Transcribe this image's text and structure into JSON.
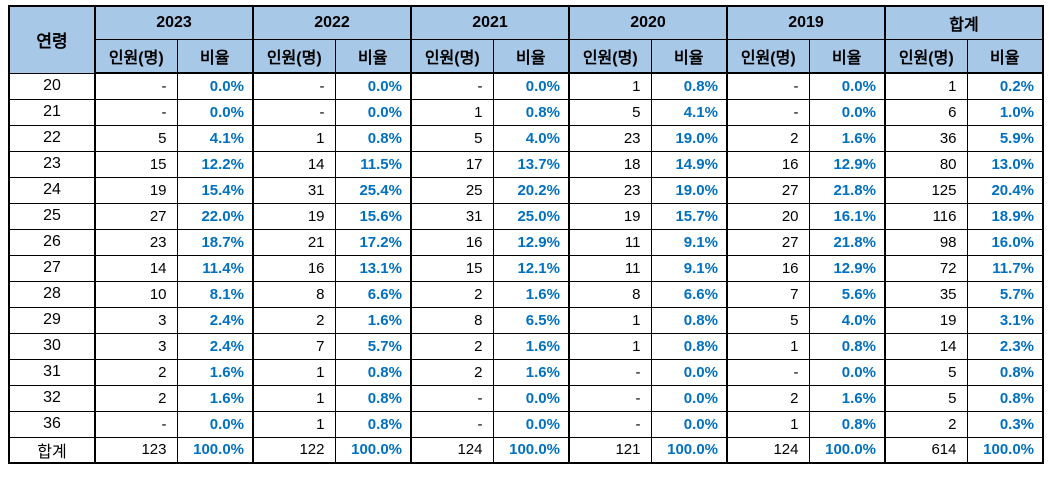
{
  "colors": {
    "header_bg": "#A8C8E8",
    "ratio_text": "#0070C0",
    "border": "#000000",
    "count_text": "#000000"
  },
  "chart_data": {
    "type": "table",
    "row_header": "연령",
    "groups": [
      "2023",
      "2022",
      "2021",
      "2020",
      "2019",
      "합계"
    ],
    "subcolumns": [
      "인원(명)",
      "비율"
    ],
    "rows": [
      {
        "age": "20",
        "values": [
          "-",
          "0.0%",
          "-",
          "0.0%",
          "-",
          "0.0%",
          "1",
          "0.8%",
          "-",
          "0.0%",
          "1",
          "0.2%"
        ]
      },
      {
        "age": "21",
        "values": [
          "-",
          "0.0%",
          "-",
          "0.0%",
          "1",
          "0.8%",
          "5",
          "4.1%",
          "-",
          "0.0%",
          "6",
          "1.0%"
        ]
      },
      {
        "age": "22",
        "values": [
          "5",
          "4.1%",
          "1",
          "0.8%",
          "5",
          "4.0%",
          "23",
          "19.0%",
          "2",
          "1.6%",
          "36",
          "5.9%"
        ]
      },
      {
        "age": "23",
        "values": [
          "15",
          "12.2%",
          "14",
          "11.5%",
          "17",
          "13.7%",
          "18",
          "14.9%",
          "16",
          "12.9%",
          "80",
          "13.0%"
        ]
      },
      {
        "age": "24",
        "values": [
          "19",
          "15.4%",
          "31",
          "25.4%",
          "25",
          "20.2%",
          "23",
          "19.0%",
          "27",
          "21.8%",
          "125",
          "20.4%"
        ]
      },
      {
        "age": "25",
        "values": [
          "27",
          "22.0%",
          "19",
          "15.6%",
          "31",
          "25.0%",
          "19",
          "15.7%",
          "20",
          "16.1%",
          "116",
          "18.9%"
        ]
      },
      {
        "age": "26",
        "values": [
          "23",
          "18.7%",
          "21",
          "17.2%",
          "16",
          "12.9%",
          "11",
          "9.1%",
          "27",
          "21.8%",
          "98",
          "16.0%"
        ]
      },
      {
        "age": "27",
        "values": [
          "14",
          "11.4%",
          "16",
          "13.1%",
          "15",
          "12.1%",
          "11",
          "9.1%",
          "16",
          "12.9%",
          "72",
          "11.7%"
        ]
      },
      {
        "age": "28",
        "values": [
          "10",
          "8.1%",
          "8",
          "6.6%",
          "2",
          "1.6%",
          "8",
          "6.6%",
          "7",
          "5.6%",
          "35",
          "5.7%"
        ]
      },
      {
        "age": "29",
        "values": [
          "3",
          "2.4%",
          "2",
          "1.6%",
          "8",
          "6.5%",
          "1",
          "0.8%",
          "5",
          "4.0%",
          "19",
          "3.1%"
        ]
      },
      {
        "age": "30",
        "values": [
          "3",
          "2.4%",
          "7",
          "5.7%",
          "2",
          "1.6%",
          "1",
          "0.8%",
          "1",
          "0.8%",
          "14",
          "2.3%"
        ]
      },
      {
        "age": "31",
        "values": [
          "2",
          "1.6%",
          "1",
          "0.8%",
          "2",
          "1.6%",
          "-",
          "0.0%",
          "-",
          "0.0%",
          "5",
          "0.8%"
        ]
      },
      {
        "age": "32",
        "values": [
          "2",
          "1.6%",
          "1",
          "0.8%",
          "-",
          "0.0%",
          "-",
          "0.0%",
          "2",
          "1.6%",
          "5",
          "0.8%"
        ]
      },
      {
        "age": "36",
        "values": [
          "-",
          "0.0%",
          "1",
          "0.8%",
          "-",
          "0.0%",
          "-",
          "0.0%",
          "1",
          "0.8%",
          "2",
          "0.3%"
        ]
      },
      {
        "age": "합계",
        "values": [
          "123",
          "100.0%",
          "122",
          "100.0%",
          "124",
          "100.0%",
          "121",
          "100.0%",
          "124",
          "100.0%",
          "614",
          "100.0%"
        ]
      }
    ]
  }
}
